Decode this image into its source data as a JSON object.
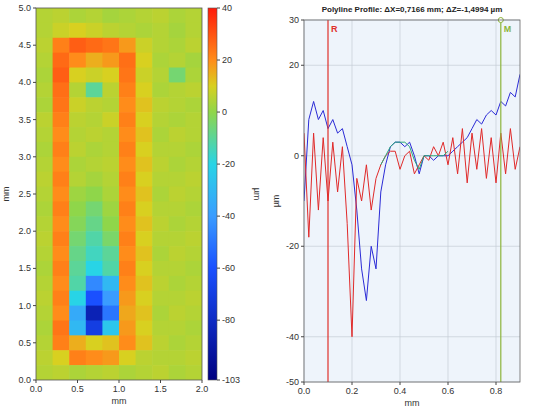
{
  "chart_data": [
    {
      "type": "heatmap",
      "xlabel": "mm",
      "ylabel": "mm",
      "xlim": [
        0,
        2
      ],
      "ylim": [
        0,
        5
      ],
      "xticks": [
        {
          "value": 0,
          "label": "0.0"
        },
        {
          "value": 0.5,
          "label": "0.5"
        },
        {
          "value": 1,
          "label": "1.0"
        },
        {
          "value": 1.5,
          "label": "1.5"
        },
        {
          "value": 2,
          "label": "2.0"
        }
      ],
      "yticks": [
        {
          "value": 0,
          "label": "0.0"
        },
        {
          "value": 0.5,
          "label": "0.5"
        },
        {
          "value": 1,
          "label": "1.0"
        },
        {
          "value": 1.5,
          "label": "1.5"
        },
        {
          "value": 2,
          "label": "2.0"
        },
        {
          "value": 2.5,
          "label": "2.5"
        },
        {
          "value": 3,
          "label": "3.0"
        },
        {
          "value": 3.5,
          "label": "3.5"
        },
        {
          "value": 4,
          "label": "4.0"
        },
        {
          "value": 4.5,
          "label": "4.5"
        },
        {
          "value": 5,
          "label": "5.0"
        }
      ],
      "xbins": [
        0,
        0.2,
        0.4,
        0.6,
        0.8,
        1,
        1.2,
        1.4,
        1.6,
        1.8,
        2
      ],
      "ybins": [
        5,
        4.8,
        4.6,
        4.4,
        4.2,
        4,
        3.8,
        3.6,
        3.4,
        3.2,
        3,
        2.8,
        2.6,
        2.4,
        2.2,
        2,
        1.8,
        1.6,
        1.4,
        1.2,
        1,
        0.8,
        0.6,
        0.4,
        0.2,
        0
      ],
      "cells": [
        [
          5,
          6,
          4,
          5,
          3,
          4,
          5,
          6,
          4,
          5
        ],
        [
          5,
          8,
          10,
          8,
          6,
          5,
          4,
          5,
          3,
          5
        ],
        [
          6,
          22,
          28,
          26,
          24,
          18,
          8,
          5,
          4,
          6
        ],
        [
          5,
          26,
          20,
          15,
          18,
          25,
          10,
          4,
          5,
          3
        ],
        [
          4,
          28,
          10,
          8,
          10,
          24,
          8,
          5,
          -5,
          4
        ],
        [
          5,
          25,
          5,
          -10,
          6,
          22,
          10,
          4,
          5,
          6
        ],
        [
          4,
          24,
          8,
          6,
          5,
          20,
          12,
          6,
          5,
          4
        ],
        [
          6,
          22,
          6,
          5,
          8,
          22,
          10,
          5,
          4,
          5
        ],
        [
          5,
          20,
          5,
          6,
          5,
          20,
          12,
          4,
          6,
          5
        ],
        [
          4,
          22,
          6,
          4,
          5,
          22,
          10,
          5,
          5,
          4
        ],
        [
          5,
          20,
          4,
          5,
          6,
          20,
          12,
          6,
          4,
          5
        ],
        [
          6,
          22,
          5,
          3,
          5,
          22,
          10,
          5,
          5,
          6
        ],
        [
          5,
          20,
          2,
          0,
          4,
          20,
          12,
          4,
          6,
          5
        ],
        [
          4,
          22,
          0,
          -5,
          2,
          22,
          10,
          5,
          5,
          4
        ],
        [
          5,
          20,
          -2,
          -8,
          0,
          20,
          12,
          6,
          4,
          5
        ],
        [
          6,
          22,
          -5,
          -12,
          -4,
          22,
          10,
          5,
          5,
          6
        ],
        [
          5,
          20,
          -8,
          -15,
          -10,
          20,
          12,
          4,
          6,
          5
        ],
        [
          4,
          22,
          -10,
          -20,
          -12,
          22,
          10,
          5,
          5,
          4
        ],
        [
          5,
          20,
          -12,
          -45,
          -30,
          20,
          12,
          6,
          4,
          5
        ],
        [
          6,
          22,
          -20,
          -60,
          -40,
          18,
          10,
          5,
          5,
          6
        ],
        [
          5,
          20,
          -35,
          -85,
          -50,
          16,
          12,
          4,
          6,
          5
        ],
        [
          4,
          24,
          -30,
          -70,
          -25,
          18,
          10,
          5,
          5,
          4
        ],
        [
          5,
          22,
          15,
          10,
          12,
          20,
          12,
          6,
          4,
          5
        ],
        [
          6,
          10,
          22,
          20,
          18,
          10,
          6,
          5,
          5,
          6
        ],
        [
          5,
          6,
          4,
          5,
          6,
          4,
          5,
          6,
          4,
          5
        ]
      ],
      "colorbar": {
        "lim": [
          -103,
          40
        ],
        "ticks": [
          -103,
          -80,
          -60,
          -40,
          -20,
          0,
          20,
          40
        ],
        "label": "µm"
      }
    },
    {
      "type": "line",
      "title": "Polyline Profile: ΔX=0,7166 mm; ΔZ=-1,4994 µm",
      "xlabel": "mm",
      "ylabel": "µm",
      "xlim": [
        0,
        0.9
      ],
      "ylim": [
        -50,
        30
      ],
      "xticks": [
        {
          "value": 0,
          "label": "0.0"
        },
        {
          "value": 0.2,
          "label": "0.2"
        },
        {
          "value": 0.4,
          "label": "0.4"
        },
        {
          "value": 0.6,
          "label": "0.6"
        },
        {
          "value": 0.8,
          "label": "0.8"
        }
      ],
      "yticks": [
        -50,
        -40,
        -20,
        0,
        20,
        30
      ],
      "grid": true,
      "x": [
        0,
        0.02,
        0.04,
        0.06,
        0.08,
        0.1,
        0.12,
        0.14,
        0.16,
        0.18,
        0.2,
        0.22,
        0.24,
        0.26,
        0.28,
        0.3,
        0.32,
        0.34,
        0.36,
        0.38,
        0.4,
        0.42,
        0.44,
        0.46,
        0.48,
        0.5,
        0.52,
        0.54,
        0.56,
        0.58,
        0.6,
        0.62,
        0.64,
        0.66,
        0.68,
        0.7,
        0.72,
        0.74,
        0.76,
        0.78,
        0.8,
        0.82,
        0.84,
        0.86,
        0.88,
        0.9
      ],
      "series": [
        {
          "color": "#2b2bd6",
          "values": [
            -10,
            8,
            12,
            8,
            10,
            6,
            8,
            5,
            6,
            2,
            -2,
            -12,
            -25,
            -32,
            -20,
            -25,
            -8,
            -2,
            2,
            3,
            3,
            2,
            3,
            0,
            -4,
            0,
            0,
            -1,
            0,
            0,
            0,
            1,
            2,
            3,
            4,
            6,
            8,
            7,
            9,
            10,
            9,
            12,
            11,
            14,
            13,
            18
          ]
        },
        {
          "color": "#e02a2a",
          "values": [
            5,
            -18,
            5,
            -12,
            4,
            -10,
            3,
            -8,
            2,
            -15,
            -40,
            -5,
            -10,
            -2,
            -12,
            -5,
            -2,
            0,
            1,
            1,
            -3,
            0,
            1,
            -4,
            -2,
            0,
            -1,
            2,
            0,
            3,
            -2,
            4,
            -4,
            6,
            -6,
            5,
            -3,
            6,
            -5,
            4,
            -6,
            5,
            -4,
            6,
            -3,
            2
          ]
        },
        {
          "color": "#2aa87a",
          "values": [
            null,
            null,
            null,
            null,
            null,
            null,
            null,
            null,
            null,
            null,
            null,
            null,
            null,
            null,
            null,
            null,
            -2,
            0,
            2,
            3,
            3,
            3,
            2,
            -1,
            -3,
            0,
            0,
            0,
            0,
            0,
            1,
            null,
            null,
            null,
            null,
            null,
            null,
            null,
            null,
            null,
            null,
            null,
            null,
            null,
            null,
            null
          ]
        }
      ],
      "markers": [
        {
          "label": "R",
          "x": 0.1,
          "color": "#e0302a"
        },
        {
          "label": "M",
          "x": 0.82,
          "color": "#8cb43c"
        }
      ]
    }
  ]
}
